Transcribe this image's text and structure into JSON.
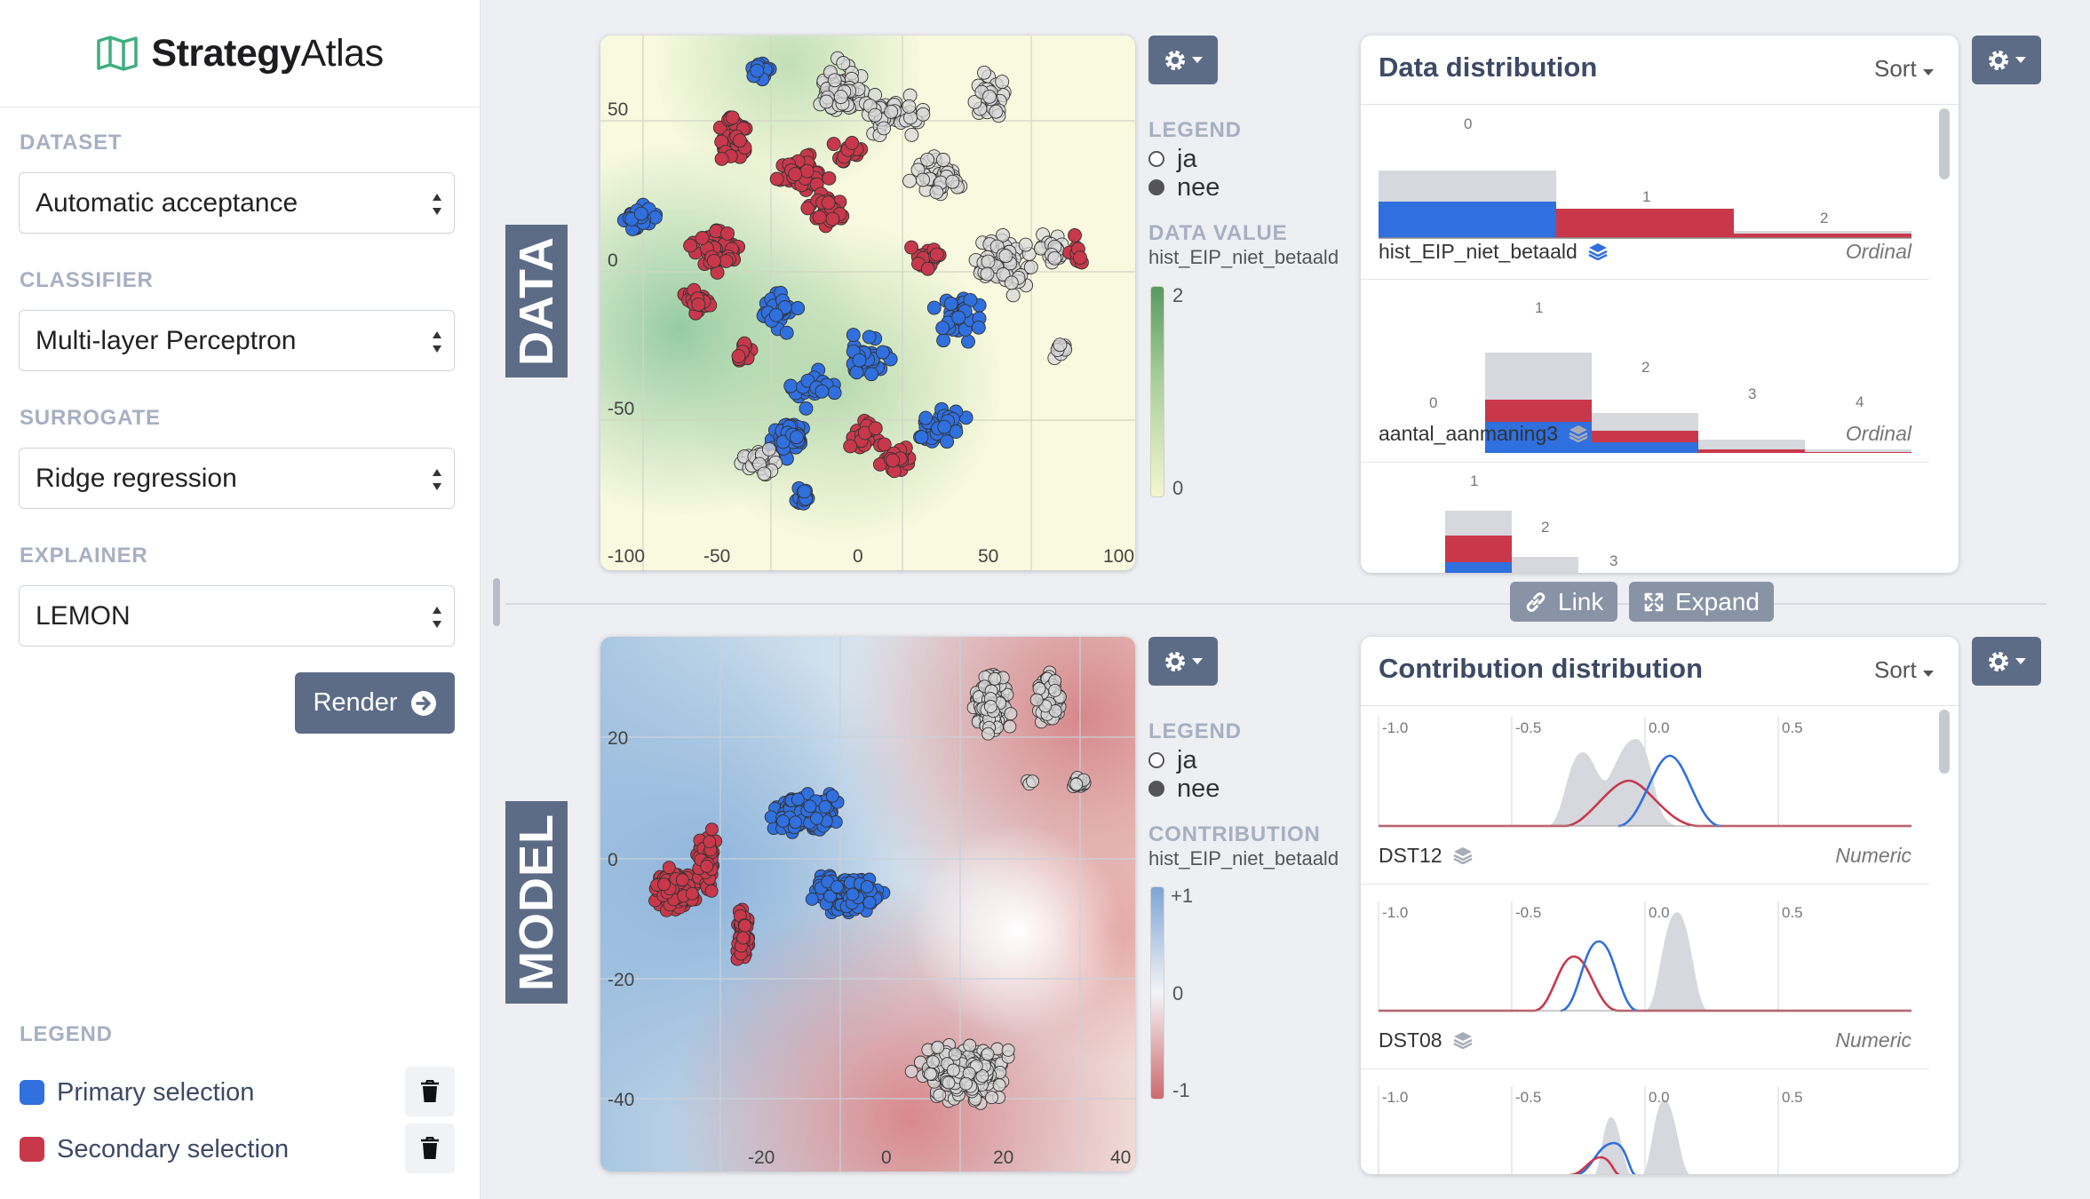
{
  "app": {
    "name_bold": "Strategy",
    "name_light": "Atlas",
    "logo_icon": "map-icon"
  },
  "sidebar": {
    "dataset_label": "DATASET",
    "dataset_value": "Automatic acceptance",
    "classifier_label": "CLASSIFIER",
    "classifier_value": "Multi-layer Perceptron",
    "surrogate_label": "SURROGATE",
    "surrogate_value": "Ridge regression",
    "explainer_label": "EXPLAINER",
    "explainer_value": "LEMON",
    "render_label": "Render",
    "legend_label": "LEGEND",
    "legend_items": [
      {
        "label": "Primary selection",
        "color": "#2f6fde"
      },
      {
        "label": "Secondary selection",
        "color": "#c8384a"
      }
    ]
  },
  "data_view": {
    "title": "DATA",
    "x_ticks": [
      "-100",
      "-50",
      "0",
      "50",
      "100"
    ],
    "y_ticks": [
      "50",
      "0",
      "-50"
    ],
    "legend_title": "LEGEND",
    "legend_items": [
      "ja",
      "nee"
    ],
    "value_title": "DATA VALUE",
    "value_feature": "hist_EIP_niet_betaald",
    "colorbar_max": "2",
    "colorbar_min": "0"
  },
  "model_view": {
    "title": "MODEL",
    "x_ticks": [
      "-20",
      "0",
      "20",
      "40"
    ],
    "y_ticks": [
      "20",
      "0",
      "-20",
      "-40"
    ],
    "legend_title": "LEGEND",
    "legend_items": [
      "ja",
      "nee"
    ],
    "value_title": "CONTRIBUTION",
    "value_feature": "hist_EIP_niet_betaald",
    "colorbar_max": "+1",
    "colorbar_mid": "0",
    "colorbar_min": "-1"
  },
  "data_distribution": {
    "title": "Data distribution",
    "sort_label": "Sort",
    "features": [
      {
        "name": "hist_EIP_niet_betaald",
        "type": "Ordinal",
        "bins": [
          "0",
          "1",
          "2"
        ]
      },
      {
        "name": "aantal_aanmaning3",
        "type": "Ordinal",
        "bins": [
          "0",
          "1",
          "2",
          "3",
          "4"
        ]
      },
      {
        "name": "",
        "type": "",
        "bins": [
          "1",
          "2",
          "3"
        ]
      }
    ]
  },
  "contribution_distribution": {
    "title": "Contribution distribution",
    "sort_label": "Sort",
    "axis_ticks": [
      "-1.0",
      "-0.5",
      "0.0",
      "0.5"
    ],
    "features": [
      {
        "name": "DST12",
        "type": "Numeric"
      },
      {
        "name": "DST08",
        "type": "Numeric"
      },
      {
        "name": "",
        "type": ""
      }
    ]
  },
  "link_label": "Link",
  "expand_label": "Expand",
  "colors": {
    "primary": "#2f6fde",
    "secondary": "#c8384a",
    "slate": "#5d6c86"
  }
}
